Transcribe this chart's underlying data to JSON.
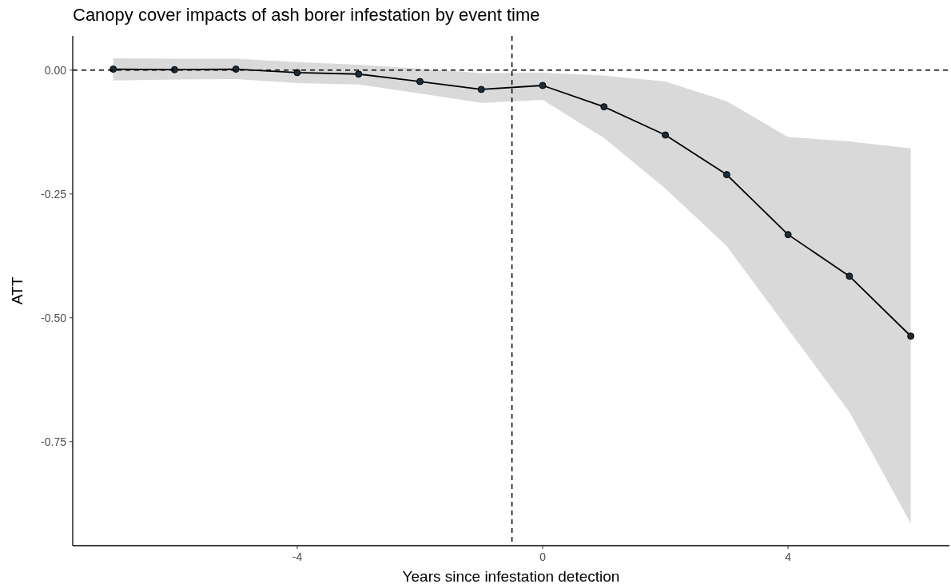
{
  "chart_data": {
    "type": "line",
    "title": "Canopy cover impacts of ash borer infestation by event time",
    "xlabel": "Years since infestation detection",
    "ylabel": "ATT",
    "x": [
      -7,
      -6,
      -5,
      -4,
      -3,
      -2,
      -1,
      0,
      1,
      2,
      3,
      4,
      5,
      6
    ],
    "series": [
      {
        "color": "#000000",
        "values": [
          0.002,
          0.001,
          0.002,
          -0.005,
          -0.008,
          -0.023,
          -0.039,
          -0.031,
          -0.074,
          -0.131,
          -0.211,
          -0.332,
          -0.416,
          -0.537
        ],
        "lower": [
          -0.021,
          -0.019,
          -0.018,
          -0.026,
          -0.029,
          -0.047,
          -0.066,
          -0.06,
          -0.137,
          -0.239,
          -0.355,
          -0.523,
          -0.69,
          -0.915
        ],
        "upper": [
          0.024,
          0.023,
          0.023,
          0.016,
          0.011,
          0.003,
          -0.006,
          -0.005,
          -0.011,
          -0.023,
          -0.063,
          -0.135,
          -0.144,
          -0.158
        ]
      }
    ],
    "xlim": [
      -7.66,
      6.63
    ],
    "xticks": [
      -4,
      0,
      4
    ],
    "ylim": [
      -0.96,
      0.069
    ],
    "yticks": [
      {
        "value": 0,
        "label": "0.00"
      },
      {
        "value": -0.25,
        "label": "-0.25"
      },
      {
        "value": -0.5,
        "label": "-0.50"
      },
      {
        "value": -0.75,
        "label": "-0.75"
      }
    ],
    "ref_lines": [
      {
        "axis": "y",
        "value": 0,
        "line_style": "dashed",
        "color": "#000000"
      },
      {
        "axis": "x",
        "value": -0.5,
        "line_style": "dashed",
        "color": "#000000"
      }
    ],
    "marker": "circle",
    "line_style": "solid",
    "grid": false
  }
}
